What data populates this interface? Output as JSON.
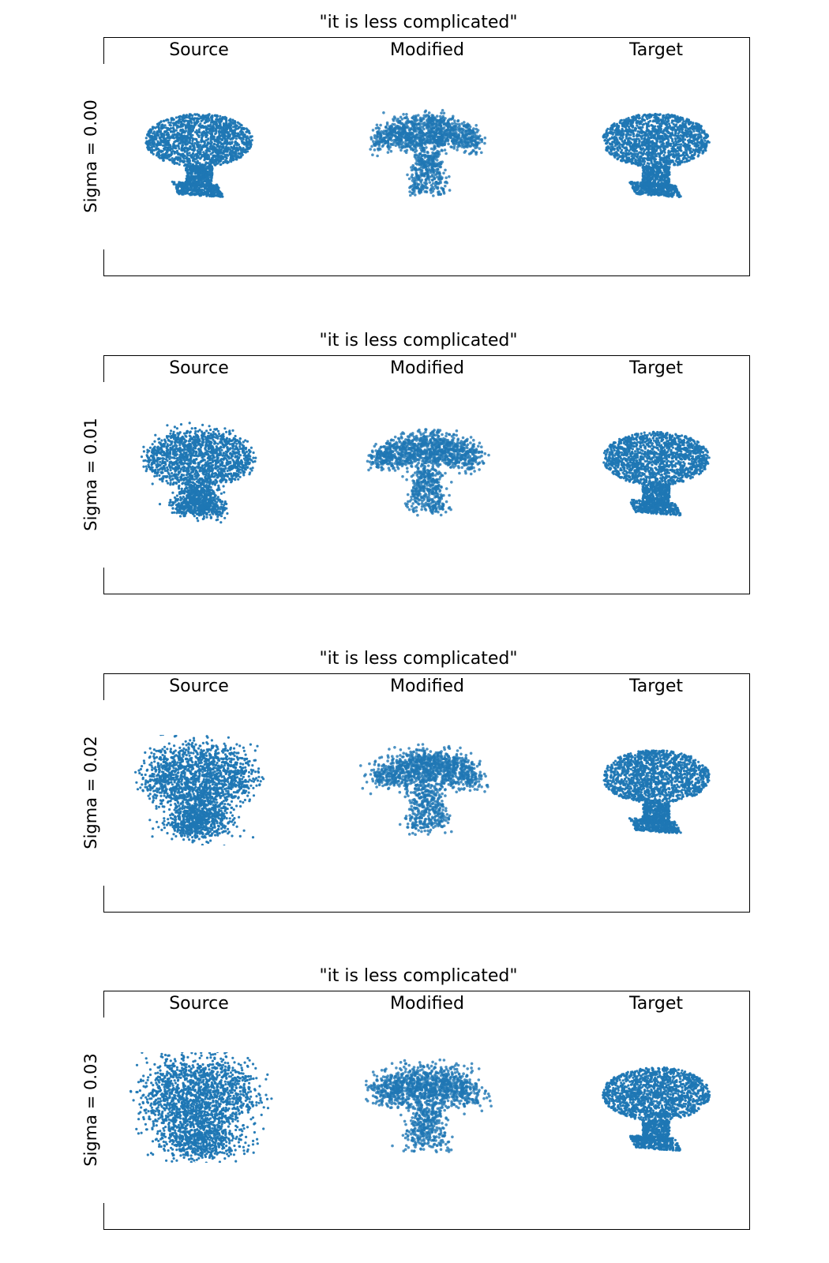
{
  "figure": {
    "columns": [
      "Source",
      "Modified",
      "Target"
    ],
    "point_color": "#1f77b4",
    "panels": [
      {
        "title": "\"it is less complicated\"",
        "row_label": "Sigma = 0.00",
        "sigma": 0.0,
        "clouds": [
          {
            "column": "Source",
            "shape": "table-pedestal",
            "noise": 0.0
          },
          {
            "column": "Modified",
            "shape": "mushroom-table",
            "noise": 0.012
          },
          {
            "column": "Target",
            "shape": "table-pedestal",
            "noise": 0.0
          }
        ]
      },
      {
        "title": "\"it is less complicated\"",
        "row_label": "Sigma = 0.01",
        "sigma": 0.01,
        "clouds": [
          {
            "column": "Source",
            "shape": "table-pedestal",
            "noise": 0.01
          },
          {
            "column": "Modified",
            "shape": "mushroom-table",
            "noise": 0.015
          },
          {
            "column": "Target",
            "shape": "table-pedestal",
            "noise": 0.0
          }
        ]
      },
      {
        "title": "\"it is less complicated\"",
        "row_label": "Sigma = 0.02",
        "sigma": 0.02,
        "clouds": [
          {
            "column": "Source",
            "shape": "table-pedestal",
            "noise": 0.02
          },
          {
            "column": "Modified",
            "shape": "mushroom-table",
            "noise": 0.018
          },
          {
            "column": "Target",
            "shape": "table-pedestal",
            "noise": 0.0
          }
        ]
      },
      {
        "title": "\"it is less complicated\"",
        "row_label": "Sigma = 0.03",
        "sigma": 0.03,
        "clouds": [
          {
            "column": "Source",
            "shape": "table-pedestal",
            "noise": 0.03
          },
          {
            "column": "Modified",
            "shape": "mushroom-table",
            "noise": 0.022
          },
          {
            "column": "Target",
            "shape": "table-pedestal",
            "noise": 0.0
          }
        ]
      }
    ]
  }
}
